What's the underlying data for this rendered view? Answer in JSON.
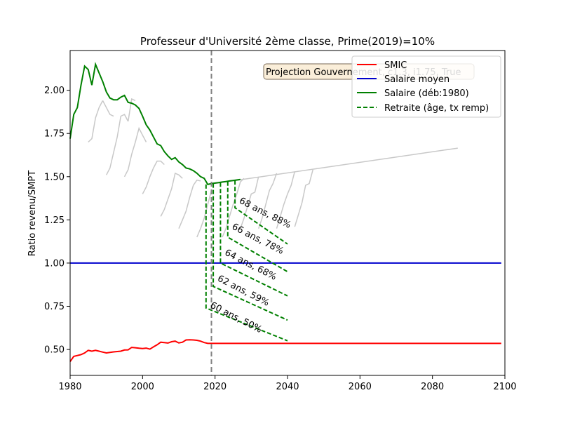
{
  "chart_data": {
    "type": "line",
    "title": "Professeur d'Université 2ème classe, Prime(2019)=10%",
    "xlabel": "",
    "ylabel": "Ratio revenu/SMPT",
    "xlim": [
      1980,
      2100
    ],
    "ylim": [
      0.35,
      2.23
    ],
    "xticks": [
      1980,
      2000,
      2020,
      2040,
      2060,
      2080,
      2100
    ],
    "yticks": [
      0.5,
      0.75,
      1.0,
      1.25,
      1.5,
      1.75,
      2.0
    ],
    "xtick_labels": [
      "1980",
      "2000",
      "2020",
      "2040",
      "2060",
      "2080",
      "2100"
    ],
    "ytick_labels": [
      "0.50",
      "0.75",
      "1.00",
      "1.25",
      "1.50",
      "1.75",
      "2.00"
    ],
    "grid": false,
    "legend_position": "top-right",
    "vline": {
      "x": 2019,
      "color": "#808080"
    },
    "projection_box": {
      "text": "Projection Gouvernement, c1.3, i1.75, True",
      "x": 2044,
      "y": 2.12
    },
    "series": [
      {
        "name": "SMIC",
        "color": "#ff0000",
        "style": "solid",
        "x": [
          1980,
          1981,
          1982,
          1983,
          1984,
          1985,
          1986,
          1987,
          1988,
          1989,
          1990,
          1991,
          1992,
          1993,
          1994,
          1995,
          1996,
          1997,
          1998,
          1999,
          2000,
          2001,
          2002,
          2003,
          2004,
          2005,
          2006,
          2007,
          2008,
          2009,
          2010,
          2011,
          2012,
          2013,
          2014,
          2015,
          2016,
          2017,
          2018,
          2019,
          2020,
          2040,
          2060,
          2080,
          2099
        ],
        "y": [
          0.43,
          0.46,
          0.465,
          0.47,
          0.48,
          0.495,
          0.49,
          0.495,
          0.49,
          0.485,
          0.48,
          0.483,
          0.486,
          0.488,
          0.49,
          0.497,
          0.498,
          0.512,
          0.51,
          0.507,
          0.505,
          0.508,
          0.502,
          0.515,
          0.527,
          0.542,
          0.54,
          0.537,
          0.545,
          0.548,
          0.538,
          0.542,
          0.555,
          0.556,
          0.555,
          0.553,
          0.548,
          0.54,
          0.535,
          0.535,
          0.535,
          0.535,
          0.535,
          0.535,
          0.535
        ]
      },
      {
        "name": "Salaire moyen",
        "color": "#0000cd",
        "style": "solid",
        "x": [
          1980,
          2099
        ],
        "y": [
          1.0,
          1.0
        ]
      },
      {
        "name": "Salaire (déb:1980)",
        "color": "#008000",
        "style": "solid",
        "x": [
          1980,
          1981,
          1982,
          1983,
          1984,
          1985,
          1986,
          1987,
          1988,
          1989,
          1990,
          1991,
          1992,
          1993,
          1994,
          1995,
          1996,
          1997,
          1998,
          1999,
          2000,
          2001,
          2002,
          2003,
          2004,
          2005,
          2006,
          2007,
          2008,
          2009,
          2010,
          2011,
          2012,
          2013,
          2014,
          2015,
          2016,
          2017,
          2018,
          2019,
          2020,
          2021,
          2022,
          2023,
          2024,
          2025,
          2026,
          2027
        ],
        "y": [
          1.72,
          1.86,
          1.9,
          2.03,
          2.14,
          2.12,
          2.03,
          2.15,
          2.1,
          2.05,
          1.99,
          1.955,
          1.945,
          1.945,
          1.96,
          1.97,
          1.93,
          1.925,
          1.915,
          1.895,
          1.85,
          1.8,
          1.77,
          1.73,
          1.69,
          1.68,
          1.645,
          1.62,
          1.6,
          1.61,
          1.585,
          1.57,
          1.55,
          1.545,
          1.535,
          1.52,
          1.5,
          1.49,
          1.455,
          1.46,
          1.463,
          1.466,
          1.469,
          1.472,
          1.475,
          1.478,
          1.481,
          1.484
        ]
      },
      {
        "name": "Retraite (âge, tx remp)",
        "color": "#008000",
        "style": "dashed",
        "segments": [
          {
            "start_x": 2017.5,
            "x": [
              2017.5,
              2017.5,
              2040
            ],
            "y": [
              1.455,
              0.74,
              0.55
            ]
          },
          {
            "start_x": 2019.5,
            "x": [
              2019.5,
              2019.5,
              2040
            ],
            "y": [
              1.46,
              0.865,
              0.67
            ]
          },
          {
            "start_x": 2021.5,
            "x": [
              2021.5,
              2021.5,
              2040
            ],
            "y": [
              1.466,
              1.0,
              0.81
            ]
          },
          {
            "start_x": 2023.5,
            "x": [
              2023.5,
              2023.5,
              2040
            ],
            "y": [
              1.472,
              1.15,
              0.95
            ]
          },
          {
            "start_x": 2025.5,
            "x": [
              2025.5,
              2025.5,
              2040
            ],
            "y": [
              1.478,
              1.32,
              1.11
            ]
          }
        ]
      }
    ],
    "grey_curves": [
      {
        "x": [
          1985,
          1986,
          1987,
          1988,
          1989
        ],
        "y": [
          1.7,
          1.72,
          1.84,
          1.9,
          1.94
        ]
      },
      {
        "x": [
          1989,
          1990,
          1991,
          1992
        ],
        "y": [
          1.94,
          1.9,
          1.86,
          1.85
        ]
      },
      {
        "x": [
          1990,
          1991,
          1992,
          1993,
          1994,
          1995,
          1996
        ],
        "y": [
          1.51,
          1.55,
          1.64,
          1.73,
          1.85,
          1.86,
          1.82
        ]
      },
      {
        "x": [
          1996,
          1997,
          1998
        ],
        "y": [
          1.82,
          1.95,
          1.94
        ]
      },
      {
        "x": [
          1995,
          1996,
          1997,
          1998,
          1999,
          2000,
          2001
        ],
        "y": [
          1.5,
          1.54,
          1.63,
          1.7,
          1.78,
          1.74,
          1.7
        ]
      },
      {
        "x": [
          2000,
          2001,
          2002,
          2003,
          2004,
          2005,
          2006
        ],
        "y": [
          1.4,
          1.44,
          1.5,
          1.55,
          1.59,
          1.59,
          1.57
        ]
      },
      {
        "x": [
          2005,
          2006,
          2007,
          2008,
          2009,
          2010,
          2011
        ],
        "y": [
          1.27,
          1.31,
          1.37,
          1.43,
          1.52,
          1.51,
          1.49
        ]
      },
      {
        "x": [
          2010,
          2011,
          2012,
          2013,
          2014,
          2015,
          2016
        ],
        "y": [
          1.2,
          1.25,
          1.3,
          1.38,
          1.45,
          1.48,
          1.475
        ]
      },
      {
        "x": [
          2015,
          2016,
          2017,
          2018,
          2019
        ],
        "y": [
          1.15,
          1.2,
          1.26,
          1.34,
          1.42
        ]
      },
      {
        "x": [
          2018,
          2087
        ],
        "y": [
          1.455,
          1.665
        ]
      },
      {
        "x": [
          2022,
          2023,
          2024,
          2025,
          2026,
          2027,
          2028
        ],
        "y": [
          1.15,
          1.2,
          1.27,
          1.34,
          1.4,
          1.47,
          1.49
        ]
      },
      {
        "x": [
          2027,
          2028,
          2029,
          2030,
          2031,
          2032
        ],
        "y": [
          1.2,
          1.26,
          1.33,
          1.4,
          1.41,
          1.5
        ]
      },
      {
        "x": [
          2032,
          2033,
          2034,
          2035,
          2036,
          2037
        ],
        "y": [
          1.2,
          1.26,
          1.34,
          1.42,
          1.46,
          1.52
        ]
      },
      {
        "x": [
          2037,
          2038,
          2039,
          2040,
          2041,
          2042
        ],
        "y": [
          1.2,
          1.27,
          1.34,
          1.4,
          1.45,
          1.53
        ]
      },
      {
        "x": [
          2042,
          2043,
          2044,
          2045,
          2046,
          2047
        ],
        "y": [
          1.21,
          1.28,
          1.35,
          1.45,
          1.46,
          1.54
        ]
      }
    ],
    "annotations": [
      {
        "text": "60 ans, 50%",
        "x": 2018.5,
        "y": 0.745
      },
      {
        "text": "62 ans, 59%",
        "x": 2020.5,
        "y": 0.9
      },
      {
        "text": "64 ans, 68%",
        "x": 2022.5,
        "y": 1.05
      },
      {
        "text": "66 ans, 78%",
        "x": 2024.5,
        "y": 1.2
      },
      {
        "text": "68 ans, 88%",
        "x": 2026.5,
        "y": 1.35
      }
    ]
  }
}
